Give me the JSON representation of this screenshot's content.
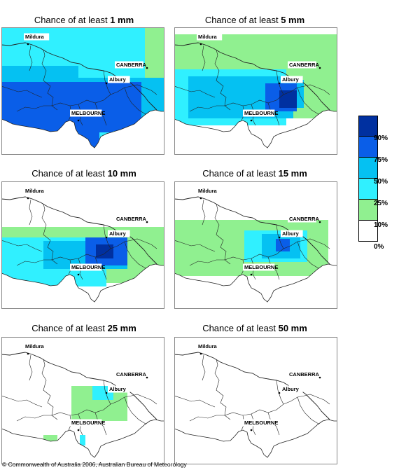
{
  "colors": {
    "p90": "#0030a0",
    "p75": "#0a5ee8",
    "p50": "#05c1f2",
    "p25": "#30f0ff",
    "p10": "#90f090",
    "p0": "#ffffff",
    "lines": "#222222"
  },
  "cities": {
    "mildura": "Mildura",
    "canberra": "CANBERRA",
    "albury": "Albury",
    "melbourne": "MELBOURNE"
  },
  "legend": {
    "labels": [
      "90%",
      "75%",
      "50%",
      "25%",
      "10%",
      "0%"
    ]
  },
  "panels": [
    {
      "prefix": "Chance of at least ",
      "amount": "1 mm",
      "level": 1
    },
    {
      "prefix": "Chance of at least ",
      "amount": "5 mm",
      "level": 2
    },
    {
      "prefix": "Chance of at least ",
      "amount": "10 mm",
      "level": 3
    },
    {
      "prefix": "Chance of at least ",
      "amount": "15 mm",
      "level": 4
    },
    {
      "prefix": "Chance of at least ",
      "amount": "25 mm",
      "level": 5
    },
    {
      "prefix": "Chance of at least ",
      "amount": "50 mm",
      "level": 6
    }
  ],
  "copyright": "© Commonwealth of Australia 2006, Australian Bureau of Meteorology"
}
